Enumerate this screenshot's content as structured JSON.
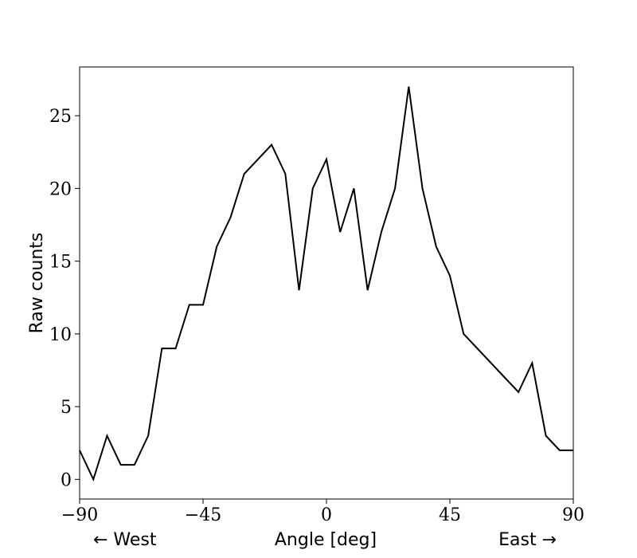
{
  "chart_data": {
    "type": "line",
    "title": "",
    "xlabel": "Angle [deg]",
    "ylabel": "Raw counts",
    "x_annotations": {
      "left": "← West",
      "right": "East →"
    },
    "xlim": [
      -90,
      90
    ],
    "ylim": [
      -1.35,
      28.35
    ],
    "xticks": [
      -90,
      -45,
      0,
      45,
      90
    ],
    "xtick_labels": [
      "−90",
      "−45",
      "0",
      "45",
      "90"
    ],
    "yticks": [
      0,
      5,
      10,
      15,
      20,
      25
    ],
    "ytick_labels": [
      "0",
      "5",
      "10",
      "15",
      "20",
      "25"
    ],
    "grid": false,
    "line_color": "#000000",
    "series": [
      {
        "x": [
          -90,
          -85,
          -80,
          -75,
          -70,
          -65,
          -60,
          -55,
          -50,
          -45,
          -40,
          -35,
          -30,
          -20,
          -15,
          -10,
          -5,
          0,
          5,
          10,
          15,
          20,
          25,
          30,
          35,
          40,
          45,
          50,
          70,
          75,
          80,
          85,
          90
        ],
        "y": [
          2,
          0,
          3,
          1,
          1,
          3,
          9,
          9,
          12,
          12,
          16,
          18,
          21,
          23,
          21,
          13,
          20,
          22,
          17,
          20,
          13,
          17,
          20,
          27,
          20,
          16,
          14,
          10,
          6,
          8,
          3,
          2,
          2
        ]
      }
    ]
  }
}
